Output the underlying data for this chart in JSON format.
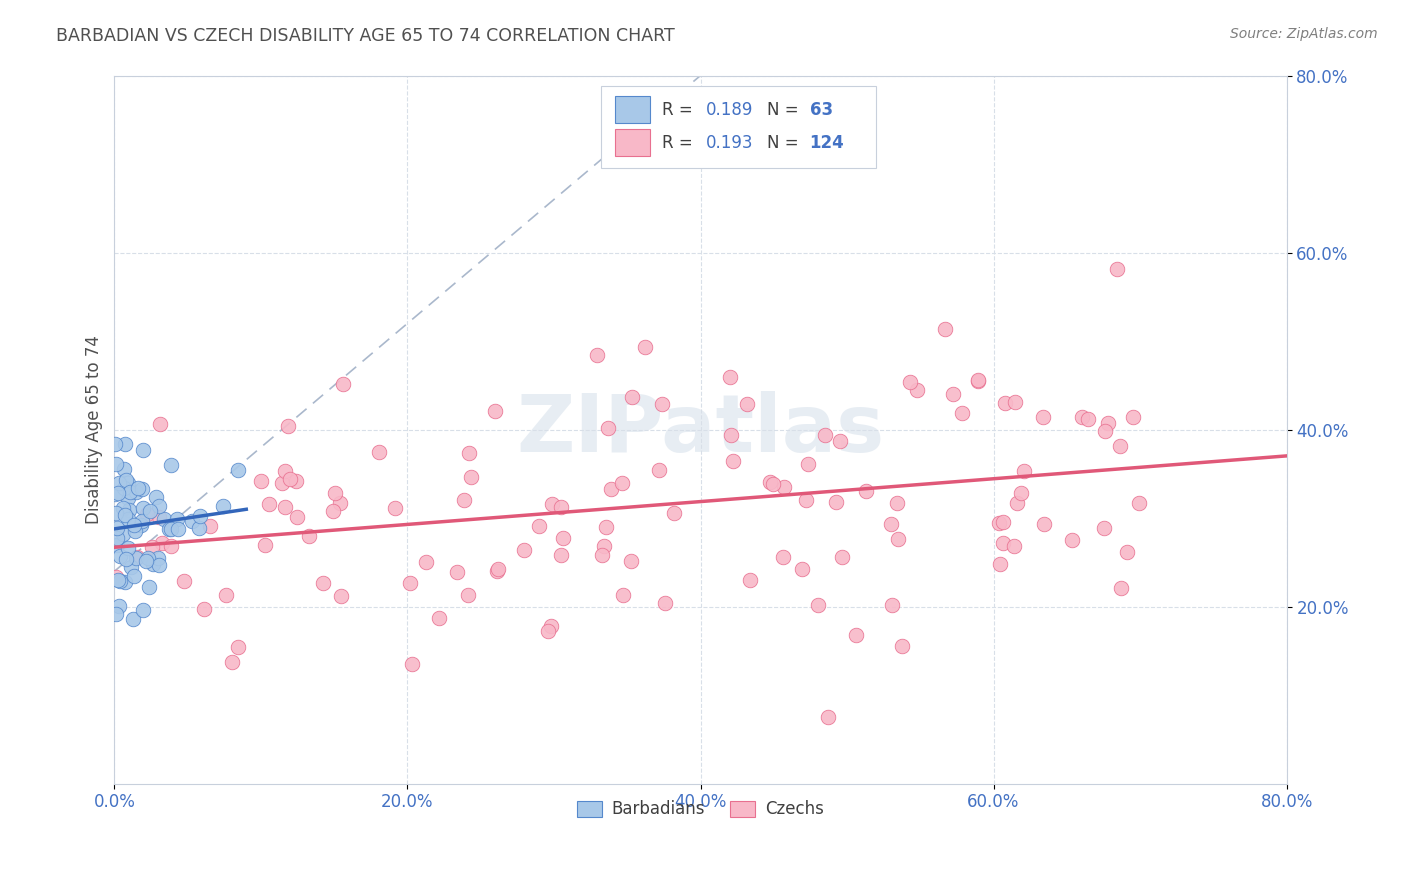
{
  "title": "BARBADIAN VS CZECH DISABILITY AGE 65 TO 74 CORRELATION CHART",
  "source": "Source: ZipAtlas.com",
  "ylabel": "Disability Age 65 to 74",
  "xlim": [
    0.0,
    0.8
  ],
  "ylim": [
    0.0,
    0.8
  ],
  "xticks": [
    0.0,
    0.2,
    0.4,
    0.6,
    0.8
  ],
  "yticks": [
    0.2,
    0.4,
    0.6,
    0.8
  ],
  "xticklabels": [
    "0.0%",
    "20.0%",
    "40.0%",
    "60.0%",
    "80.0%"
  ],
  "yticklabels": [
    "20.0%",
    "40.0%",
    "60.0%",
    "80.0%"
  ],
  "blue_scatter_color": "#a8c8e8",
  "blue_edge_color": "#5588cc",
  "pink_scatter_color": "#f8b8c8",
  "pink_edge_color": "#e87090",
  "blue_line_color": "#3366bb",
  "pink_line_color": "#e05878",
  "dashed_line_color": "#aab8cc",
  "tick_color": "#4472C4",
  "title_color": "#505050",
  "source_color": "#808080",
  "background_color": "#ffffff",
  "grid_color": "#d8dfe8",
  "watermark_color": "#d0dce8",
  "legend_border_color": "#c8d0dc",
  "r_label_color": "#404040",
  "n_value_color": "#4472C4"
}
